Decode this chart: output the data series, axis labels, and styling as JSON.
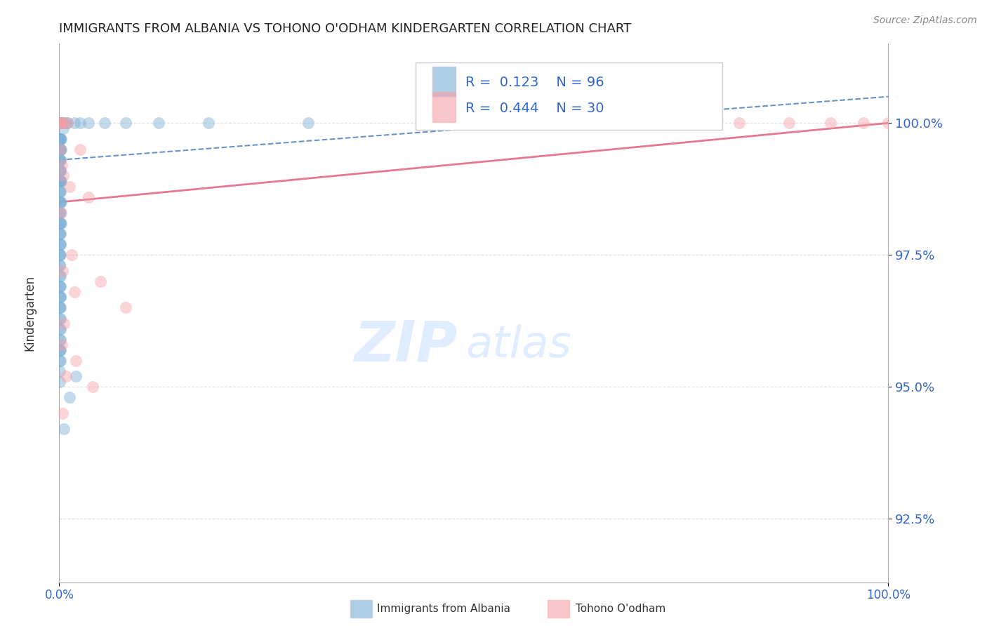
{
  "title": "IMMIGRANTS FROM ALBANIA VS TOHONO O'ODHAM KINDERGARTEN CORRELATION CHART",
  "source": "Source: ZipAtlas.com",
  "ylabel": "Kindergarten",
  "ytick_values": [
    92.5,
    95.0,
    97.5,
    100.0
  ],
  "legend_label_blue": "Immigrants from Albania",
  "legend_label_pink": "Tohono O'odham",
  "r_blue": "0.123",
  "n_blue": "96",
  "r_pink": "0.444",
  "n_pink": "30",
  "blue_color": "#7BAFD4",
  "pink_color": "#F4A0A8",
  "blue_line_color": "#4477BB",
  "pink_line_color": "#E06080",
  "watermark_zip": "ZIP",
  "watermark_atlas": "atlas",
  "blue_dots": [
    [
      0.05,
      100.0
    ],
    [
      0.08,
      100.0
    ],
    [
      0.1,
      100.0
    ],
    [
      0.12,
      100.0
    ],
    [
      0.15,
      100.0
    ],
    [
      0.18,
      100.0
    ],
    [
      0.22,
      100.0
    ],
    [
      0.28,
      100.0
    ],
    [
      0.35,
      100.0
    ],
    [
      0.05,
      99.7
    ],
    [
      0.08,
      99.7
    ],
    [
      0.1,
      99.7
    ],
    [
      0.15,
      99.7
    ],
    [
      0.2,
      99.7
    ],
    [
      0.05,
      99.5
    ],
    [
      0.08,
      99.5
    ],
    [
      0.12,
      99.5
    ],
    [
      0.18,
      99.5
    ],
    [
      0.25,
      99.5
    ],
    [
      0.05,
      99.3
    ],
    [
      0.08,
      99.3
    ],
    [
      0.1,
      99.3
    ],
    [
      0.15,
      99.3
    ],
    [
      0.05,
      99.1
    ],
    [
      0.08,
      99.1
    ],
    [
      0.12,
      99.1
    ],
    [
      0.18,
      99.1
    ],
    [
      0.05,
      98.9
    ],
    [
      0.08,
      98.9
    ],
    [
      0.12,
      98.9
    ],
    [
      0.18,
      98.9
    ],
    [
      0.25,
      98.9
    ],
    [
      0.05,
      98.7
    ],
    [
      0.08,
      98.7
    ],
    [
      0.12,
      98.7
    ],
    [
      0.05,
      98.5
    ],
    [
      0.08,
      98.5
    ],
    [
      0.12,
      98.5
    ],
    [
      0.2,
      98.5
    ],
    [
      0.05,
      98.3
    ],
    [
      0.08,
      98.3
    ],
    [
      0.15,
      98.3
    ],
    [
      0.05,
      98.1
    ],
    [
      0.08,
      98.1
    ],
    [
      0.12,
      98.1
    ],
    [
      0.2,
      98.1
    ],
    [
      0.05,
      97.9
    ],
    [
      0.08,
      97.9
    ],
    [
      0.15,
      97.9
    ],
    [
      0.05,
      97.7
    ],
    [
      0.1,
      97.7
    ],
    [
      0.18,
      97.7
    ],
    [
      0.05,
      97.5
    ],
    [
      0.08,
      97.5
    ],
    [
      0.15,
      97.5
    ],
    [
      0.05,
      97.3
    ],
    [
      0.08,
      97.3
    ],
    [
      0.05,
      97.1
    ],
    [
      0.1,
      97.1
    ],
    [
      0.05,
      96.9
    ],
    [
      0.08,
      96.9
    ],
    [
      0.15,
      96.9
    ],
    [
      0.05,
      96.7
    ],
    [
      0.1,
      96.7
    ],
    [
      0.18,
      96.7
    ],
    [
      0.05,
      96.5
    ],
    [
      0.08,
      96.5
    ],
    [
      0.15,
      96.5
    ],
    [
      0.05,
      96.3
    ],
    [
      0.1,
      96.3
    ],
    [
      0.05,
      96.1
    ],
    [
      0.1,
      96.1
    ],
    [
      0.05,
      95.9
    ],
    [
      0.1,
      95.9
    ],
    [
      0.05,
      95.7
    ],
    [
      0.08,
      95.7
    ],
    [
      0.15,
      95.7
    ],
    [
      0.05,
      95.5
    ],
    [
      0.1,
      95.5
    ],
    [
      0.05,
      95.3
    ],
    [
      0.05,
      95.1
    ],
    [
      0.5,
      99.9
    ],
    [
      0.7,
      100.0
    ],
    [
      1.0,
      100.0
    ],
    [
      1.8,
      100.0
    ],
    [
      2.5,
      100.0
    ],
    [
      3.5,
      100.0
    ],
    [
      5.5,
      100.0
    ],
    [
      8.0,
      100.0
    ],
    [
      12.0,
      100.0
    ],
    [
      18.0,
      100.0
    ],
    [
      30.0,
      100.0
    ],
    [
      45.0,
      100.0
    ],
    [
      1.2,
      94.8
    ],
    [
      2.0,
      95.2
    ],
    [
      0.6,
      94.2
    ]
  ],
  "pink_dots": [
    [
      0.08,
      100.0
    ],
    [
      0.15,
      100.0
    ],
    [
      0.25,
      100.0
    ],
    [
      0.5,
      100.0
    ],
    [
      1.0,
      100.0
    ],
    [
      0.12,
      99.5
    ],
    [
      0.3,
      99.2
    ],
    [
      0.5,
      99.0
    ],
    [
      1.2,
      98.8
    ],
    [
      2.5,
      99.5
    ],
    [
      0.2,
      98.3
    ],
    [
      1.5,
      97.5
    ],
    [
      0.4,
      97.2
    ],
    [
      3.5,
      98.6
    ],
    [
      1.8,
      96.8
    ],
    [
      0.6,
      96.2
    ],
    [
      5.0,
      97.0
    ],
    [
      0.3,
      95.8
    ],
    [
      2.0,
      95.5
    ],
    [
      0.8,
      95.2
    ],
    [
      4.0,
      95.0
    ],
    [
      0.4,
      94.5
    ],
    [
      8.0,
      96.5
    ],
    [
      82.0,
      100.0
    ],
    [
      88.0,
      100.0
    ],
    [
      78.0,
      100.0
    ],
    [
      72.0,
      100.0
    ],
    [
      93.0,
      100.0
    ],
    [
      97.0,
      100.0
    ],
    [
      100.0,
      100.0
    ]
  ],
  "blue_trend": [
    0.0,
    99.3,
    100.0,
    100.5
  ],
  "pink_trend": [
    0.0,
    98.5,
    100.0,
    100.0
  ],
  "xlim": [
    0,
    100
  ],
  "ylim": [
    91.3,
    101.5
  ]
}
